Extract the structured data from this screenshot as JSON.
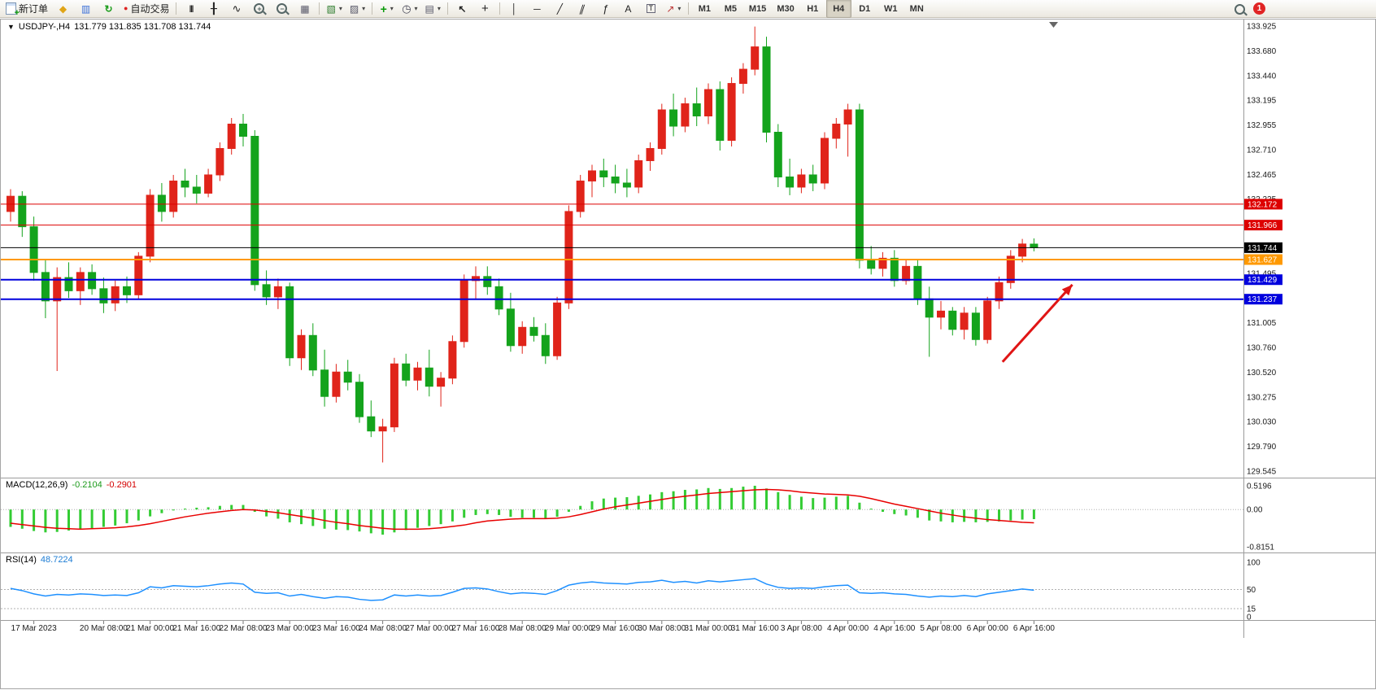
{
  "toolbar": {
    "new_order": "新订单",
    "autotrading": "自动交易",
    "timeframes": [
      "M1",
      "M5",
      "M15",
      "M30",
      "H1",
      "H4",
      "D1",
      "W1",
      "MN"
    ],
    "active_timeframe": "H4",
    "badge_count": "1"
  },
  "icons": {
    "chart_menu": "▼",
    "metaeditor": "◆",
    "data_window": "▥",
    "refresh": "↻",
    "autotrading_dot": "●",
    "bar_chart": "|||",
    "candlestick": "╂",
    "line_chart": "∿",
    "tile": "▦",
    "new_chart": "▧",
    "profiles": "▨",
    "indicators": "+",
    "periods": "◷",
    "templates": "▤",
    "cursor": "↖",
    "crosshair": "+",
    "vline": "│",
    "hline": "─",
    "trendline": "╱",
    "channel": "∥",
    "fibonacci": "ƒ",
    "text": "A",
    "text_label": "T",
    "arrows": "↗",
    "caret": "▾",
    "plus": "+",
    "minus": "−"
  },
  "chart": {
    "title_symbol": "USDJPY-,H4",
    "title_ohlc": "131.779 131.835 131.708 131.744",
    "macd_label": "MACD(12,26,9)",
    "macd_main": "-0.2104",
    "macd_signal": "-0.2901",
    "rsi_label": "RSI(14)",
    "rsi_value": "48.7224"
  },
  "chart_data": {
    "type": "candlestick",
    "symbol": "USDJPY-",
    "timeframe": "H4",
    "current": {
      "open": 131.779,
      "high": 131.835,
      "low": 131.708,
      "close": 131.744
    },
    "colors": {
      "up": "#e0241a",
      "down": "#14a31c",
      "macd_hist": "#33cc33",
      "macd_signal": "#e80000",
      "rsi": "#1e90ff"
    },
    "price_axis": {
      "max": 133.925,
      "min": 129.545,
      "tick_labels": [
        "133.925",
        "133.680",
        "133.440",
        "133.195",
        "132.955",
        "132.710",
        "132.465",
        "132.225",
        "131.980",
        "131.740",
        "131.495",
        "131.250",
        "131.005",
        "130.760",
        "130.520",
        "130.275",
        "130.030",
        "129.790",
        "129.545"
      ]
    },
    "ohlc": [
      [
        132.1,
        132.32,
        132.0,
        132.25
      ],
      [
        132.25,
        132.3,
        131.85,
        131.95
      ],
      [
        131.95,
        132.05,
        131.42,
        131.5
      ],
      [
        131.5,
        131.62,
        131.05,
        131.22
      ],
      [
        131.22,
        131.55,
        130.53,
        131.45
      ],
      [
        131.45,
        131.6,
        131.25,
        131.32
      ],
      [
        131.32,
        131.55,
        131.18,
        131.5
      ],
      [
        131.5,
        131.58,
        131.28,
        131.34
      ],
      [
        131.34,
        131.45,
        131.1,
        131.2
      ],
      [
        131.2,
        131.42,
        131.12,
        131.36
      ],
      [
        131.36,
        131.46,
        131.2,
        131.28
      ],
      [
        131.28,
        131.7,
        131.24,
        131.66
      ],
      [
        131.66,
        132.32,
        131.6,
        132.26
      ],
      [
        132.26,
        132.38,
        132.0,
        132.1
      ],
      [
        132.1,
        132.46,
        132.04,
        132.4
      ],
      [
        132.4,
        132.52,
        132.24,
        132.34
      ],
      [
        132.34,
        132.46,
        132.18,
        132.28
      ],
      [
        132.28,
        132.52,
        132.24,
        132.46
      ],
      [
        132.46,
        132.78,
        132.4,
        132.72
      ],
      [
        132.72,
        133.02,
        132.66,
        132.96
      ],
      [
        132.96,
        133.06,
        132.74,
        132.84
      ],
      [
        132.84,
        132.9,
        131.32,
        131.38
      ],
      [
        131.38,
        131.52,
        131.18,
        131.26
      ],
      [
        131.26,
        131.44,
        131.14,
        131.36
      ],
      [
        131.36,
        131.4,
        130.58,
        130.66
      ],
      [
        130.66,
        130.94,
        130.54,
        130.88
      ],
      [
        130.88,
        131.0,
        130.48,
        130.54
      ],
      [
        130.54,
        130.74,
        130.18,
        130.28
      ],
      [
        130.28,
        130.6,
        130.22,
        130.52
      ],
      [
        130.52,
        130.64,
        130.34,
        130.42
      ],
      [
        130.42,
        130.5,
        130.02,
        130.08
      ],
      [
        130.08,
        130.24,
        129.88,
        129.94
      ],
      [
        129.94,
        130.06,
        129.63,
        129.98
      ],
      [
        129.98,
        130.66,
        129.93,
        130.6
      ],
      [
        130.6,
        130.7,
        130.38,
        130.44
      ],
      [
        130.44,
        130.62,
        130.34,
        130.56
      ],
      [
        130.56,
        130.74,
        130.28,
        130.38
      ],
      [
        130.38,
        130.52,
        130.18,
        130.46
      ],
      [
        130.46,
        130.88,
        130.4,
        130.82
      ],
      [
        130.82,
        131.48,
        130.76,
        131.42
      ],
      [
        131.42,
        131.56,
        131.24,
        131.46
      ],
      [
        131.46,
        131.56,
        131.28,
        131.36
      ],
      [
        131.36,
        131.44,
        131.08,
        131.14
      ],
      [
        131.14,
        131.3,
        130.72,
        130.78
      ],
      [
        130.78,
        131.02,
        130.7,
        130.96
      ],
      [
        130.96,
        131.06,
        130.82,
        130.88
      ],
      [
        130.88,
        131.0,
        130.6,
        130.68
      ],
      [
        130.68,
        131.26,
        130.64,
        131.2
      ],
      [
        131.2,
        132.16,
        131.14,
        132.1
      ],
      [
        132.1,
        132.46,
        132.04,
        132.4
      ],
      [
        132.4,
        132.56,
        132.24,
        132.5
      ],
      [
        132.5,
        132.62,
        132.34,
        132.44
      ],
      [
        132.44,
        132.56,
        132.28,
        132.38
      ],
      [
        132.38,
        132.52,
        132.24,
        132.34
      ],
      [
        132.34,
        132.66,
        132.28,
        132.6
      ],
      [
        132.6,
        132.78,
        132.5,
        132.72
      ],
      [
        132.72,
        133.16,
        132.66,
        133.1
      ],
      [
        133.1,
        133.26,
        132.84,
        132.94
      ],
      [
        132.94,
        133.22,
        132.88,
        133.16
      ],
      [
        133.16,
        133.32,
        132.94,
        133.04
      ],
      [
        133.04,
        133.36,
        132.96,
        133.3
      ],
      [
        133.3,
        133.38,
        132.7,
        132.8
      ],
      [
        132.8,
        133.42,
        132.74,
        133.36
      ],
      [
        133.36,
        133.56,
        133.26,
        133.5
      ],
      [
        133.5,
        133.92,
        133.44,
        133.72
      ],
      [
        133.72,
        133.82,
        132.78,
        132.88
      ],
      [
        132.88,
        132.96,
        132.34,
        132.44
      ],
      [
        132.44,
        132.62,
        132.26,
        132.34
      ],
      [
        132.34,
        132.52,
        132.28,
        132.46
      ],
      [
        132.46,
        132.56,
        132.3,
        132.38
      ],
      [
        132.38,
        132.88,
        132.32,
        132.82
      ],
      [
        132.82,
        133.02,
        132.72,
        132.96
      ],
      [
        132.96,
        133.16,
        132.64,
        133.1
      ],
      [
        133.1,
        133.16,
        131.54,
        131.62
      ],
      [
        131.62,
        131.76,
        131.48,
        131.54
      ],
      [
        131.54,
        131.7,
        131.46,
        131.64
      ],
      [
        131.64,
        131.72,
        131.36,
        131.42
      ],
      [
        131.42,
        131.62,
        131.38,
        131.56
      ],
      [
        131.56,
        131.62,
        131.18,
        131.24
      ],
      [
        131.24,
        131.36,
        130.67,
        131.06
      ],
      [
        131.06,
        131.22,
        130.94,
        131.12
      ],
      [
        131.12,
        131.16,
        130.88,
        130.94
      ],
      [
        130.94,
        131.16,
        130.84,
        131.1
      ],
      [
        131.1,
        131.16,
        130.78,
        130.84
      ],
      [
        130.84,
        131.26,
        130.8,
        131.22
      ],
      [
        131.22,
        131.46,
        131.14,
        131.4
      ],
      [
        131.4,
        131.72,
        131.34,
        131.66
      ],
      [
        131.66,
        131.83,
        131.6,
        131.78
      ],
      [
        131.779,
        131.835,
        131.708,
        131.744
      ]
    ],
    "time_axis": {
      "labels": [
        "17 Mar 2023",
        "20 Mar 08:00",
        "21 Mar 00:00",
        "21 Mar 16:00",
        "22 Mar 08:00",
        "23 Mar 00:00",
        "23 Mar 16:00",
        "24 Mar 08:00",
        "27 Mar 00:00",
        "27 Mar 16:00",
        "28 Mar 08:00",
        "29 Mar 00:00",
        "29 Mar 16:00",
        "30 Mar 08:00",
        "31 Mar 00:00",
        "31 Mar 16:00",
        "3 Apr 08:00",
        "4 Apr 00:00",
        "4 Apr 16:00",
        "5 Apr 08:00",
        "6 Apr 00:00",
        "6 Apr 16:00"
      ],
      "candle_indices": [
        2,
        8,
        12,
        16,
        20,
        24,
        28,
        32,
        36,
        40,
        44,
        48,
        52,
        56,
        60,
        64,
        68,
        72,
        76,
        80,
        84,
        88
      ]
    },
    "horizontal_lines": [
      {
        "price": 132.172,
        "color": "#dd0000",
        "width": 1
      },
      {
        "price": 131.966,
        "color": "#dd0000",
        "width": 1
      },
      {
        "price": 131.627,
        "color": "#ff9900",
        "width": 2
      },
      {
        "price": 131.429,
        "color": "#0000dd",
        "width": 2
      },
      {
        "price": 131.237,
        "color": "#0000dd",
        "width": 2
      },
      {
        "price": 131.744,
        "color": "#000000",
        "width": 1
      }
    ],
    "macd": {
      "params": "12,26,9",
      "display_main": -0.2104,
      "display_signal": -0.2901,
      "axis": {
        "max": 0.5196,
        "min": -0.8151,
        "labels": [
          "0.5196",
          "0.00",
          "-0.8151"
        ]
      },
      "main": [
        -0.38,
        -0.42,
        -0.47,
        -0.5,
        -0.49,
        -0.46,
        -0.44,
        -0.41,
        -0.38,
        -0.35,
        -0.3,
        -0.24,
        -0.15,
        -0.08,
        -0.02,
        0.02,
        0.04,
        0.05,
        0.08,
        0.1,
        0.1,
        -0.05,
        -0.15,
        -0.2,
        -0.28,
        -0.32,
        -0.36,
        -0.42,
        -0.44,
        -0.45,
        -0.48,
        -0.52,
        -0.55,
        -0.5,
        -0.45,
        -0.4,
        -0.36,
        -0.32,
        -0.26,
        -0.18,
        -0.12,
        -0.1,
        -0.12,
        -0.16,
        -0.18,
        -0.18,
        -0.2,
        -0.16,
        -0.05,
        0.08,
        0.18,
        0.24,
        0.26,
        0.27,
        0.3,
        0.33,
        0.38,
        0.4,
        0.43,
        0.44,
        0.47,
        0.45,
        0.47,
        0.5,
        0.52,
        0.46,
        0.38,
        0.32,
        0.28,
        0.25,
        0.26,
        0.28,
        0.3,
        0.15,
        0.02,
        -0.05,
        -0.1,
        -0.13,
        -0.18,
        -0.24,
        -0.26,
        -0.28,
        -0.27,
        -0.28,
        -0.27,
        -0.26,
        -0.24,
        -0.22,
        -0.2104
      ],
      "signal": [
        -0.3,
        -0.33,
        -0.36,
        -0.39,
        -0.41,
        -0.42,
        -0.43,
        -0.42,
        -0.41,
        -0.4,
        -0.38,
        -0.35,
        -0.31,
        -0.26,
        -0.21,
        -0.16,
        -0.12,
        -0.08,
        -0.05,
        -0.02,
        0.0,
        -0.01,
        -0.04,
        -0.07,
        -0.11,
        -0.15,
        -0.19,
        -0.24,
        -0.28,
        -0.31,
        -0.35,
        -0.38,
        -0.41,
        -0.43,
        -0.43,
        -0.43,
        -0.42,
        -0.4,
        -0.37,
        -0.34,
        -0.29,
        -0.25,
        -0.23,
        -0.21,
        -0.2,
        -0.2,
        -0.2,
        -0.19,
        -0.16,
        -0.11,
        -0.05,
        0.01,
        0.06,
        0.1,
        0.14,
        0.18,
        0.22,
        0.26,
        0.29,
        0.32,
        0.35,
        0.37,
        0.39,
        0.41,
        0.43,
        0.44,
        0.43,
        0.41,
        0.38,
        0.36,
        0.34,
        0.33,
        0.32,
        0.29,
        0.24,
        0.18,
        0.12,
        0.07,
        0.02,
        -0.03,
        -0.08,
        -0.12,
        -0.16,
        -0.19,
        -0.22,
        -0.24,
        -0.26,
        -0.28,
        -0.2901
      ]
    },
    "rsi": {
      "period": 14,
      "display": 48.7224,
      "range": [
        0,
        100
      ],
      "levels": [
        50,
        15
      ],
      "axis_labels": [
        {
          "value": 100,
          "text": "100"
        },
        {
          "value": 50,
          "text": "50"
        },
        {
          "value": 15,
          "text": "15"
        },
        {
          "value": 0,
          "text": "0"
        }
      ],
      "values": [
        52,
        48,
        42,
        38,
        41,
        40,
        42,
        41,
        39,
        40,
        39,
        44,
        55,
        53,
        57,
        56,
        55,
        57,
        60,
        62,
        60,
        45,
        43,
        44,
        38,
        41,
        37,
        34,
        37,
        36,
        32,
        30,
        31,
        40,
        38,
        40,
        38,
        39,
        45,
        52,
        53,
        51,
        46,
        42,
        44,
        43,
        41,
        48,
        58,
        62,
        64,
        62,
        61,
        60,
        63,
        64,
        67,
        63,
        65,
        62,
        66,
        64,
        66,
        68,
        70,
        60,
        54,
        52,
        53,
        52,
        55,
        57,
        58,
        44,
        43,
        44,
        42,
        41,
        38,
        36,
        38,
        37,
        39,
        37,
        42,
        45,
        48,
        51,
        48.7224
      ]
    },
    "arrow_annotation": {
      "from_index": 85.3,
      "from_price": 130.62,
      "to_index": 91.3,
      "to_price": 131.38,
      "color": "#e01515"
    }
  }
}
